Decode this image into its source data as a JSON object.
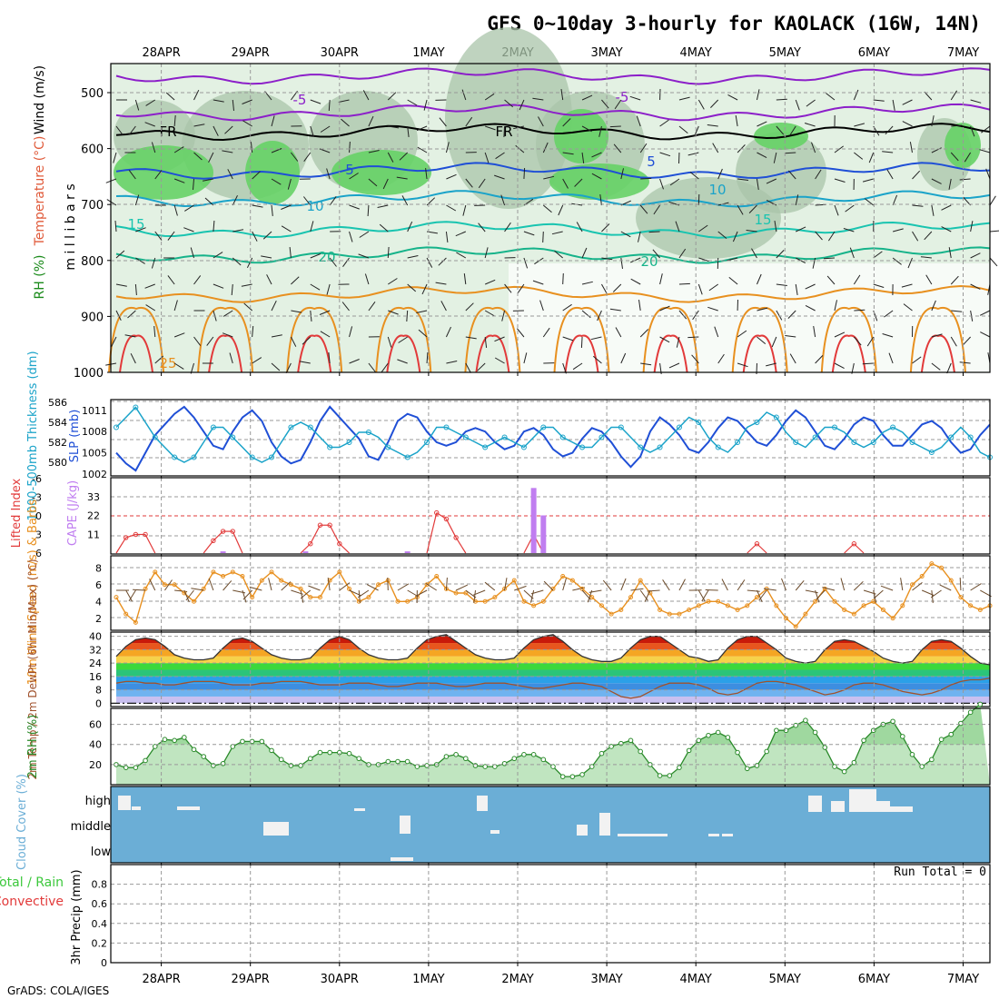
{
  "title": "GFS 0~10day 3-hourly for KAOLACK (16W, 14N)",
  "footer": "GrADS: COLA/IGES",
  "dates": [
    "28APR",
    "29APR",
    "30APR",
    "1MAY",
    "2MAY",
    "3MAY",
    "4MAY",
    "5MAY",
    "6MAY",
    "7MAY"
  ],
  "colors": {
    "rh_light": "#e3f1e3",
    "rh_mid": "#a9c4a9",
    "rh_green": "#66d266",
    "sky": "#6baed6",
    "purple": "#8c1fc9",
    "blue": "#1f4fd6",
    "cyan": "#1aa3c9",
    "teal": "#19c4b0",
    "orange": "#e8901f",
    "red": "#e23a3a",
    "cape": "#c07ef0"
  },
  "chart_data": [
    {
      "type": "contour",
      "panel": "upper-air",
      "ylabel": "m i l l i b a r s",
      "y_ticks": [
        500,
        600,
        700,
        800,
        900,
        1000
      ],
      "left_labels": [
        "Wind (m/s)",
        "Temperature (°C)",
        "RH (%)"
      ],
      "temperature_contours": [
        {
          "value": -5,
          "label": "-5"
        },
        {
          "value": 0,
          "label": "FR"
        },
        {
          "value": 5,
          "label": "5"
        },
        {
          "value": 10,
          "label": "10"
        },
        {
          "value": 15,
          "label": "15"
        },
        {
          "value": 20,
          "label": "20"
        },
        {
          "value": 25,
          "label": "25"
        }
      ],
      "rh_contours": [
        "30",
        "50"
      ]
    },
    {
      "type": "line",
      "panel": "slp-thickness",
      "ylabel_left": "1000-500mb Thickness (dm)",
      "ylabel_right": "SLP (mb)",
      "y_ticks_left": [
        580,
        582,
        584,
        586
      ],
      "y_ticks_right": [
        1002,
        1005,
        1008,
        1011
      ],
      "series": [
        {
          "name": "SLP",
          "values": [
            1005,
            1003.5,
            1002.5,
            1005,
            1007.5,
            1009,
            1010.5,
            1011.5,
            1010,
            1008,
            1006,
            1005.5,
            1008,
            1010,
            1011,
            1009.5,
            1006.5,
            1004.5,
            1003.5,
            1004,
            1006.5,
            1009.5,
            1011.5,
            1010,
            1008.5,
            1007,
            1004.5,
            1004,
            1006.5,
            1009.5,
            1010.5,
            1010,
            1008,
            1006.5,
            1006,
            1006.5,
            1008,
            1008.5,
            1008,
            1006.5,
            1005.5,
            1006,
            1008,
            1008.5,
            1007.5,
            1005.5,
            1004.5,
            1005,
            1007,
            1008.5,
            1008,
            1006.5,
            1004.5,
            1003,
            1004.5,
            1008,
            1010,
            1009,
            1007.5,
            1005.5,
            1005,
            1006.5,
            1008.5,
            1010,
            1009.5,
            1008,
            1006.5,
            1006,
            1007.5,
            1009.5,
            1011,
            1010,
            1008,
            1006,
            1005.5,
            1007,
            1009,
            1010,
            1009.5,
            1007.5,
            1006,
            1006,
            1007.5,
            1009,
            1009.5,
            1008.5,
            1006.5,
            1005,
            1005.5,
            1007.5,
            1009
          ]
        },
        {
          "name": "1000-500mb Thickness",
          "values": [
            583.5,
            584.5,
            585.5,
            584,
            582.5,
            581.5,
            580.5,
            580,
            580.5,
            582,
            583.5,
            583.5,
            582.5,
            581.5,
            580.5,
            580,
            580.5,
            582,
            583.5,
            584,
            583.5,
            582.5,
            581.5,
            581.5,
            582,
            583,
            583,
            582.5,
            581.5,
            581,
            580.5,
            581,
            582,
            583.5,
            583.5,
            583,
            582.5,
            582,
            581.5,
            582,
            582.5,
            582,
            581.5,
            582.5,
            583.5,
            583.5,
            582.5,
            582,
            581.5,
            581.5,
            582.5,
            583.5,
            583.5,
            582.5,
            581.5,
            581,
            581.5,
            582.5,
            583.5,
            584.5,
            584,
            582.5,
            581.5,
            581,
            582,
            583.5,
            584,
            585,
            584.5,
            583,
            582,
            581.5,
            582.5,
            583.5,
            583.5,
            583,
            582,
            581.5,
            582,
            583,
            583.5,
            583,
            582,
            581.5,
            581,
            581.5,
            582.5,
            583.5,
            582.5,
            581,
            580.5
          ]
        }
      ]
    },
    {
      "type": "bar",
      "panel": "cape-li",
      "ylabel_left": "Lifted Index",
      "ylabel_right": "CAPE (J/kg)",
      "y_ticks_left": [
        -6,
        -3,
        0,
        3,
        6
      ],
      "y_ticks_right": [
        11,
        22,
        33
      ],
      "series": [
        {
          "name": "Lifted Index",
          "values": [
            6,
            3.5,
            3,
            3,
            6,
            6,
            6,
            6,
            6,
            6,
            4,
            2.5,
            2.5,
            6,
            6,
            6,
            6,
            6,
            6,
            6,
            4.5,
            1.5,
            1.5,
            4.5,
            6,
            6,
            6,
            6,
            6,
            6,
            6,
            6,
            6,
            -0.5,
            0.5,
            3.5,
            6,
            6,
            6,
            6,
            6,
            6,
            6,
            3,
            6,
            6,
            6,
            6,
            6,
            6,
            6,
            6,
            6,
            6,
            6,
            6,
            6,
            6,
            6,
            6,
            6,
            6,
            6,
            6,
            6,
            6,
            4.5,
            6,
            6,
            6,
            6,
            6,
            6,
            6,
            6,
            6,
            4.5,
            6,
            6,
            6,
            6,
            6,
            6,
            6,
            6,
            6,
            6,
            6,
            6,
            6,
            6
          ]
        },
        {
          "name": "CAPE",
          "bars": [
            {
              "x": 11.0,
              "value": 1
            },
            {
              "x": 19.5,
              "value": 1
            },
            {
              "x": 30.0,
              "value": 1
            },
            {
              "x": 43.0,
              "value": 38
            },
            {
              "x": 44.0,
              "value": 22
            }
          ]
        }
      ]
    },
    {
      "type": "line",
      "panel": "wind10m",
      "ylabel": "10m Wind Speed (m/s) & Barbs",
      "y_ticks": [
        2,
        4,
        6,
        8
      ],
      "series": [
        {
          "name": "10m Wind Speed",
          "values": [
            4.5,
            2.5,
            1.5,
            5.5,
            7.5,
            6,
            6,
            5,
            4,
            5.5,
            7.5,
            7,
            7.5,
            7,
            4.5,
            6.5,
            7.5,
            6.5,
            6,
            5.5,
            4.5,
            4.5,
            6.5,
            7.5,
            5.5,
            4,
            4.5,
            6,
            6.5,
            4,
            4,
            4.5,
            6,
            7,
            5.5,
            5,
            5,
            4,
            4,
            4.5,
            5.5,
            6.5,
            4,
            3.5,
            4,
            5.5,
            7,
            6.5,
            5.5,
            4.5,
            3.5,
            2.5,
            3,
            4.5,
            6.5,
            5,
            3,
            2.5,
            2.5,
            3,
            3.5,
            4,
            4,
            3.5,
            3,
            3.5,
            4.5,
            5.5,
            3.5,
            2,
            1,
            2.5,
            4,
            5.5,
            4,
            3,
            2.5,
            3.5,
            4,
            3,
            2,
            3.5,
            6,
            7,
            8.5,
            8,
            6.5,
            4.5,
            3.5,
            3,
            3.5
          ]
        }
      ]
    },
    {
      "type": "area",
      "panel": "temperature",
      "ylabel": "2m Temp / 2m DewPt (6hr Min/Max) (°C)",
      "y_ticks": [
        0,
        8,
        16,
        24,
        32,
        40
      ],
      "series": [
        {
          "name": "2m Temp",
          "values": [
            28,
            34,
            38,
            39,
            38,
            34,
            29,
            27,
            26,
            26,
            27,
            33,
            38,
            39,
            37,
            33,
            29,
            27,
            26,
            26,
            27,
            33,
            38,
            40,
            38,
            33,
            29,
            27,
            26,
            26,
            27,
            33,
            38,
            40,
            41,
            37,
            33,
            29,
            27,
            26,
            26,
            27,
            33,
            38,
            40,
            41,
            37,
            32,
            28,
            26,
            25,
            25,
            27,
            33,
            38,
            40,
            40,
            36,
            32,
            28,
            27,
            25,
            26,
            33,
            38,
            40,
            40,
            36,
            32,
            27,
            25,
            24,
            25,
            32,
            37,
            38,
            37,
            34,
            31,
            27,
            25,
            24,
            25,
            32,
            37,
            38,
            37,
            33,
            28,
            24,
            23
          ]
        },
        {
          "name": "2m DewPt",
          "values": [
            12,
            13,
            13,
            12,
            12,
            11,
            11,
            12,
            13,
            13,
            13,
            12,
            11,
            11,
            11,
            12,
            12,
            13,
            13,
            13,
            12,
            11,
            11,
            11,
            12,
            12,
            12,
            11,
            10,
            10,
            11,
            12,
            12,
            12,
            11,
            10,
            10,
            11,
            12,
            12,
            12,
            11,
            10,
            9,
            9,
            10,
            11,
            12,
            12,
            11,
            10,
            7,
            4,
            3,
            4,
            7,
            10,
            12,
            12,
            12,
            11,
            9,
            6,
            5,
            6,
            9,
            12,
            13,
            13,
            12,
            11,
            9,
            7,
            5,
            6,
            8,
            11,
            12,
            12,
            11,
            9,
            7,
            6,
            5,
            6,
            8,
            11,
            13,
            14,
            14,
            15
          ]
        }
      ]
    },
    {
      "type": "area",
      "panel": "rh2m",
      "ylabel": "2m RH (%)",
      "y_ticks": [
        20,
        40,
        60
      ],
      "series": [
        {
          "name": "2m RH",
          "values": [
            20,
            17,
            17,
            24,
            38,
            45,
            44,
            47,
            35,
            28,
            19,
            21,
            38,
            43,
            43,
            43,
            34,
            25,
            19,
            19,
            26,
            32,
            32,
            32,
            31,
            26,
            20,
            20,
            23,
            23,
            23,
            18,
            19,
            20,
            28,
            30,
            26,
            19,
            18,
            18,
            21,
            26,
            30,
            30,
            25,
            18,
            8,
            8,
            10,
            18,
            31,
            38,
            41,
            44,
            33,
            20,
            9,
            9,
            17,
            34,
            44,
            49,
            52,
            47,
            32,
            16,
            19,
            33,
            54,
            54,
            59,
            64,
            52,
            37,
            18,
            13,
            22,
            44,
            54,
            60,
            63,
            48,
            30,
            18,
            25,
            45,
            50,
            61,
            72,
            80
          ]
        }
      ]
    },
    {
      "type": "heatmap",
      "panel": "cloud-cover",
      "ylabel": "Cloud Cover (%)",
      "levels": [
        "high",
        "middle",
        "low"
      ]
    },
    {
      "type": "bar",
      "panel": "precip",
      "ylabel": "3hr Precip (mm)",
      "legend": [
        "Total / Rain",
        "Convective"
      ],
      "y_ticks": [
        0,
        0.2,
        0.4,
        0.6,
        0.8
      ],
      "run_total": "Run Total = 0",
      "values": []
    }
  ]
}
